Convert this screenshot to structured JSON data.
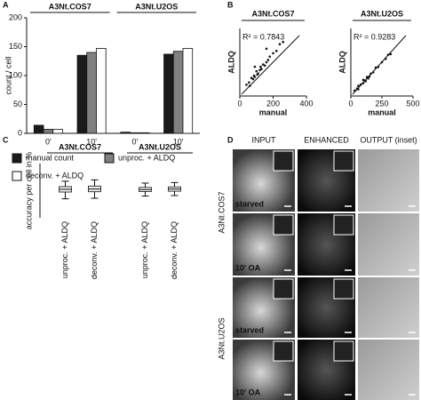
{
  "panel_labels": [
    "A",
    "B",
    "C",
    "D"
  ],
  "chart_data": [
    {
      "type": "bar",
      "ylabel": "count / cell",
      "group_labels": [
        "A3Nt.COS7",
        "A3Nt.U2OS"
      ],
      "categories": [
        "0'",
        "10'",
        "0'",
        "10'"
      ],
      "series": [
        {
          "name": "manual count",
          "color": "#1a1a1a",
          "values": [
            14,
            135,
            2,
            137
          ]
        },
        {
          "name": "unproc. + ALDQ",
          "color": "#808080",
          "values": [
            7,
            140,
            1,
            142
          ]
        },
        {
          "name": "deconv. + ALDQ",
          "color": "#ffffff",
          "values": [
            7,
            147,
            1,
            147
          ]
        }
      ],
      "ylim": [
        0,
        200
      ],
      "yticks": [
        0,
        50,
        100,
        150,
        200
      ]
    },
    {
      "type": "scatter",
      "title": "A3Nt.COS7",
      "annotation": "R² = 0.7843",
      "xlabel": "manual",
      "ylabel": "ALDQ",
      "x": [
        40,
        55,
        60,
        70,
        80,
        85,
        90,
        100,
        105,
        110,
        120,
        125,
        130,
        140,
        150,
        160,
        170,
        180,
        200,
        220,
        240,
        260,
        160,
        90
      ],
      "values": [
        50,
        60,
        45,
        80,
        75,
        90,
        85,
        110,
        95,
        100,
        115,
        130,
        120,
        140,
        135,
        150,
        160,
        175,
        190,
        200,
        230,
        240,
        210,
        130
      ],
      "xlim": [
        0,
        400
      ],
      "xticks": [
        0,
        200,
        400
      ],
      "ylim": [
        0,
        300
      ],
      "color": "#111111"
    },
    {
      "type": "scatter",
      "title": "A3Nt.U2OS",
      "annotation": "R² = 0.9283",
      "xlabel": "manual",
      "ylabel": "ALDQ",
      "x": [
        30,
        50,
        60,
        80,
        100,
        110,
        120,
        130,
        150,
        160,
        180,
        200,
        220,
        250,
        280,
        300,
        320,
        100,
        140,
        60
      ],
      "values": [
        40,
        55,
        50,
        85,
        95,
        115,
        110,
        140,
        145,
        165,
        175,
        210,
        215,
        250,
        275,
        305,
        310,
        120,
        130,
        75
      ],
      "xlim": [
        0,
        500
      ],
      "xticks": [
        0,
        250,
        500
      ],
      "ylim": [
        0,
        500
      ],
      "color": "#111111"
    },
    {
      "type": "box",
      "ylabel": "accuracy per cell in %",
      "group_labels": [
        "A3Nt.COS7",
        "A3Nt.U2OS"
      ],
      "categories": [
        "unproc. + ALDQ",
        "deconv. + ALDQ",
        "unproc. + ALDQ",
        "deconv. + ALDQ"
      ],
      "boxes": [
        {
          "min": 70,
          "q1": 95,
          "median": 105,
          "q3": 115,
          "max": 135
        },
        {
          "min": 72,
          "q1": 96,
          "median": 106,
          "q3": 117,
          "max": 140
        },
        {
          "min": 80,
          "q1": 97,
          "median": 104,
          "q3": 112,
          "max": 128
        },
        {
          "min": 82,
          "q1": 98,
          "median": 106,
          "q3": 114,
          "max": 130
        }
      ],
      "ylim": [
        0,
        200
      ]
    }
  ],
  "image_panel": {
    "columns": [
      "INPUT",
      "ENHANCED",
      "OUTPUT (inset)"
    ],
    "rows": [
      {
        "label": "A3Nt.COS7",
        "conditions": [
          "starved",
          "10' OA"
        ]
      },
      {
        "label": "A3Nt.U2OS",
        "conditions": [
          "starved",
          "10' OA"
        ]
      }
    ]
  }
}
